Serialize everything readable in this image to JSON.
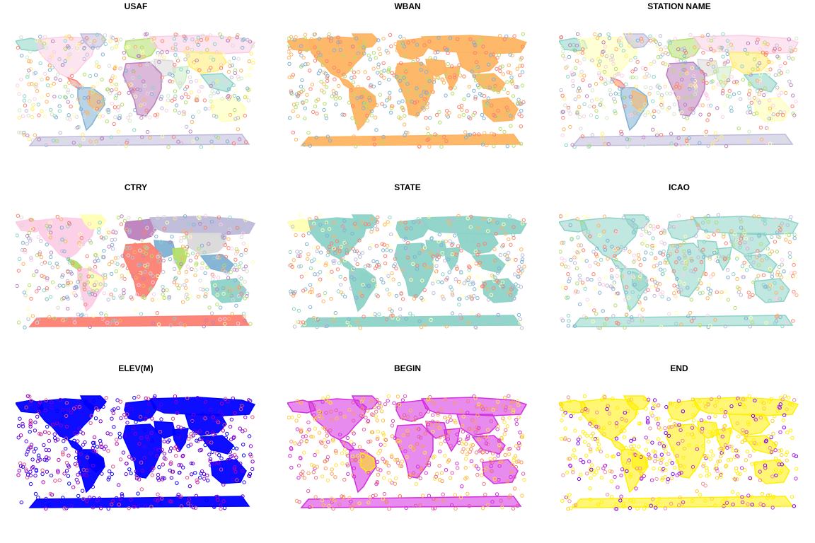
{
  "figure": {
    "panels": [
      {
        "id": "usaf",
        "title": "USAF",
        "scheme": "multi_pastel",
        "land": "mixed",
        "point_colors": [
          "#8DD3C7",
          "#FFFFB3",
          "#BEBADA",
          "#FB8072",
          "#80B1D3",
          "#FDB462",
          "#B3DE69",
          "#FCCDE5",
          "#D9D9D9",
          "#BC80BD",
          "#CCEBC5",
          "#FFED6F"
        ],
        "region_colors": {
          "north_america": "#FCCDE5"
        }
      },
      {
        "id": "wban",
        "title": "WBAN",
        "scheme": "single_dominant",
        "land": "solid",
        "point_colors": [
          "#FDB462",
          "#80B1D3",
          "#B3DE69",
          "#FB8072"
        ],
        "region_colors": {
          "all": "#FDB462"
        }
      },
      {
        "id": "station_name",
        "title": "STATION NAME",
        "scheme": "multi_pastel",
        "land": "mixed",
        "point_colors": [
          "#8DD3C7",
          "#FFFFB3",
          "#BEBADA",
          "#FB8072",
          "#80B1D3",
          "#FDB462",
          "#B3DE69",
          "#FCCDE5",
          "#D9D9D9",
          "#BC80BD",
          "#CCEBC5",
          "#FFED6F"
        ],
        "region_colors": {}
      },
      {
        "id": "ctry",
        "title": "CTRY",
        "scheme": "categorical_regions",
        "land": "solid",
        "point_colors": [
          "#8DD3C7",
          "#FFFFB3",
          "#BEBADA",
          "#FB8072",
          "#80B1D3",
          "#FDB462",
          "#B3DE69",
          "#FCCDE5",
          "#D9D9D9",
          "#BC80BD"
        ],
        "region_colors": {
          "north_america": "#FCCDE5",
          "greenland": "#FFFFB3",
          "central_america": "#B3DE69",
          "south_america": "#FCCDE5",
          "brazil": "#FFFFB3",
          "europe": "#BC80BD",
          "russia": "#BEBADA",
          "africa": "#FB8072",
          "middle_east": "#80B1D3",
          "india": "#B3DE69",
          "china": "#D9D9D9",
          "southeast_asia": "#80B1D3",
          "australia": "#8DD3C7",
          "antarctica": "#FB8072",
          "alaska": "#FCCDE5"
        }
      },
      {
        "id": "state",
        "title": "STATE",
        "scheme": "single_dominant",
        "land": "solid",
        "point_colors": [
          "#8DD3C7",
          "#FFFFB3",
          "#BEBADA",
          "#FB8072",
          "#80B1D3",
          "#FDB462"
        ],
        "region_colors": {
          "all": "#8DD3C7",
          "north_america": "#8DD3C7",
          "alaska": "#FFFFB3"
        }
      },
      {
        "id": "icao",
        "title": "ICAO",
        "scheme": "dominant_mixed",
        "land": "mixed",
        "point_colors": [
          "#8DD3C7",
          "#FFFFB3",
          "#BEBADA",
          "#FB8072",
          "#80B1D3",
          "#FDB462",
          "#B3DE69",
          "#FCCDE5"
        ],
        "region_colors": {
          "all": "#8DD3C7"
        }
      },
      {
        "id": "elev",
        "title": "ELEV(M)",
        "scheme": "gradient_blue",
        "land": "solid",
        "point_colors": [
          "#0000FF",
          "#2A00F5",
          "#5500E8",
          "#8000D5",
          "#B000B0",
          "#E0508A"
        ],
        "region_colors": {
          "all": "#0000FF"
        }
      },
      {
        "id": "begin",
        "title": "BEGIN",
        "scheme": "gradient_plasma",
        "land": "mixed",
        "point_colors": [
          "#D42EE0",
          "#E05AAE",
          "#F0797F",
          "#F89A5A",
          "#FFC040",
          "#FFE240"
        ],
        "region_colors": {
          "all": "#D42EE0",
          "brazil": "#FFF000"
        }
      },
      {
        "id": "end",
        "title": "END",
        "scheme": "gradient_yellow",
        "land": "mixed",
        "point_colors": [
          "#FFF000",
          "#FFF000",
          "#FFF000",
          "#F8D030",
          "#F090A0",
          "#C030E0",
          "#8000FF"
        ],
        "region_colors": {
          "all": "#FFF000"
        }
      }
    ]
  }
}
